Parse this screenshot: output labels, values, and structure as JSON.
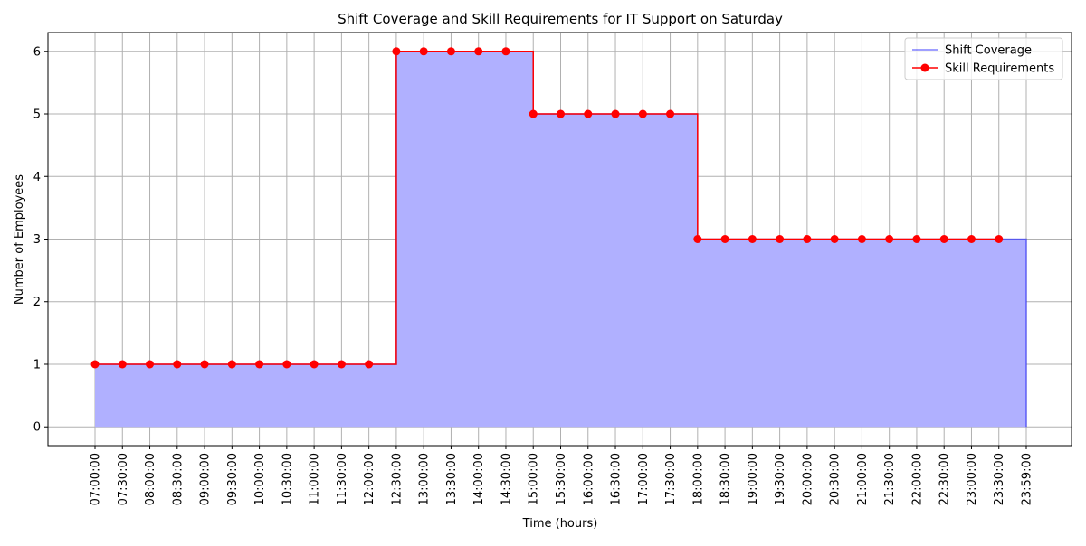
{
  "chart_data": {
    "type": "step",
    "title": "Shift Coverage and Skill Requirements for IT Support on Saturday",
    "x_label": "Time (hours)",
    "y_label": "Number of Employees",
    "categories": [
      "07:00:00",
      "07:30:00",
      "08:00:00",
      "08:30:00",
      "09:00:00",
      "09:30:00",
      "10:00:00",
      "10:30:00",
      "11:00:00",
      "11:30:00",
      "12:00:00",
      "12:30:00",
      "13:00:00",
      "13:30:00",
      "14:00:00",
      "14:30:00",
      "15:00:00",
      "15:30:00",
      "16:00:00",
      "16:30:00",
      "17:00:00",
      "17:30:00",
      "18:00:00",
      "18:30:00",
      "19:00:00",
      "19:30:00",
      "20:00:00",
      "20:30:00",
      "21:00:00",
      "21:30:00",
      "22:00:00",
      "22:30:00",
      "23:00:00",
      "23:30:00",
      "23:59:00"
    ],
    "series": [
      {
        "name": "Shift Coverage",
        "color": "#0000ff",
        "fill": "#b0b0ff",
        "values": [
          1,
          1,
          1,
          1,
          1,
          1,
          1,
          1,
          1,
          1,
          1,
          6,
          6,
          6,
          6,
          6,
          5,
          5,
          5,
          5,
          5,
          5,
          3,
          3,
          3,
          3,
          3,
          3,
          3,
          3,
          3,
          3,
          3,
          3,
          0
        ]
      },
      {
        "name": "Skill Requirements",
        "color": "#ff0000",
        "values": [
          1,
          1,
          1,
          1,
          1,
          1,
          1,
          1,
          1,
          1,
          1,
          6,
          6,
          6,
          6,
          6,
          5,
          5,
          5,
          5,
          5,
          5,
          3,
          3,
          3,
          3,
          3,
          3,
          3,
          3,
          3,
          3,
          3,
          3,
          null
        ]
      }
    ],
    "ylim": [
      -0.3,
      6.3
    ],
    "yticks": [
      0,
      1,
      2,
      3,
      4,
      5,
      6
    ],
    "grid": true,
    "legend": "upper right"
  }
}
